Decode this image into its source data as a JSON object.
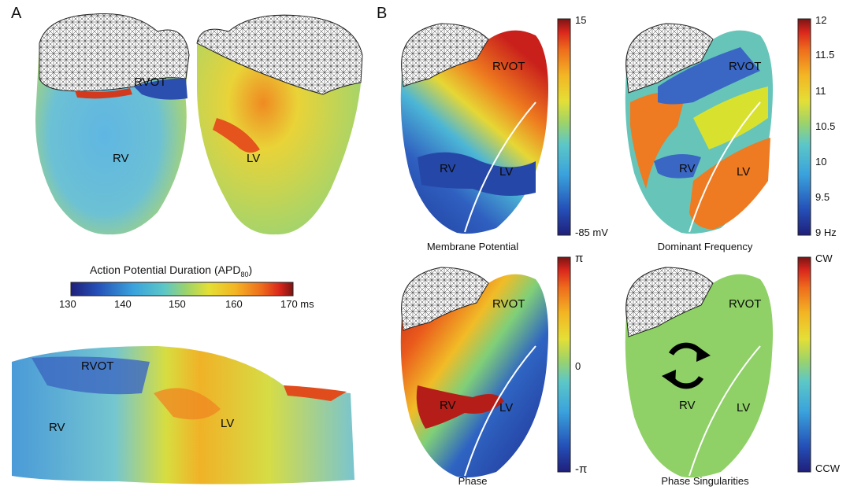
{
  "panel_a": {
    "letter": "A",
    "views": {
      "anterior": {
        "labels": [
          "RVOT",
          "RV"
        ]
      },
      "posterior": {
        "labels": [
          "LV"
        ]
      },
      "flat": {
        "labels": [
          "RVOT",
          "RV",
          "LV"
        ]
      }
    },
    "colorbar": {
      "title_main": "Action Potential Duration (APD",
      "title_sub": "80",
      "title_end": ")",
      "ticks": [
        "130",
        "140",
        "150",
        "160",
        "170 ms"
      ]
    }
  },
  "panel_b": {
    "letter": "B",
    "maps": [
      {
        "caption": "Membrane Potential",
        "labels": [
          "RVOT",
          "RV",
          "LV"
        ],
        "ticks": [
          "15",
          "-85 mV"
        ]
      },
      {
        "caption": "Dominant Frequency",
        "labels": [
          "RVOT",
          "RV",
          "LV"
        ],
        "ticks": [
          "12",
          "11.5",
          "11",
          "10.5",
          "10",
          "9.5",
          "9 Hz"
        ]
      },
      {
        "caption": "Phase",
        "labels": [
          "RVOT",
          "RV",
          "LV"
        ],
        "ticks": [
          "π",
          "0",
          "-π"
        ]
      },
      {
        "caption": "Phase Singularities",
        "labels": [
          "RVOT",
          "RV",
          "LV"
        ],
        "ticks": [
          "CW",
          "CCW"
        ]
      }
    ]
  },
  "colors": {
    "jet": [
      "#1f1f7a",
      "#2450b8",
      "#3aa2dc",
      "#5cc7c7",
      "#9dd36a",
      "#e4df36",
      "#f3b524",
      "#ee6b1c",
      "#d9261c",
      "#7a1414"
    ],
    "singularity_green": "#8fd067",
    "freq_blue": "#3a67c4",
    "freq_teal": "#66c5b8",
    "freq_yellow": "#d8e22e",
    "freq_orange": "#ee7a22"
  },
  "icons": [
    "rotation-arrows-icon"
  ]
}
